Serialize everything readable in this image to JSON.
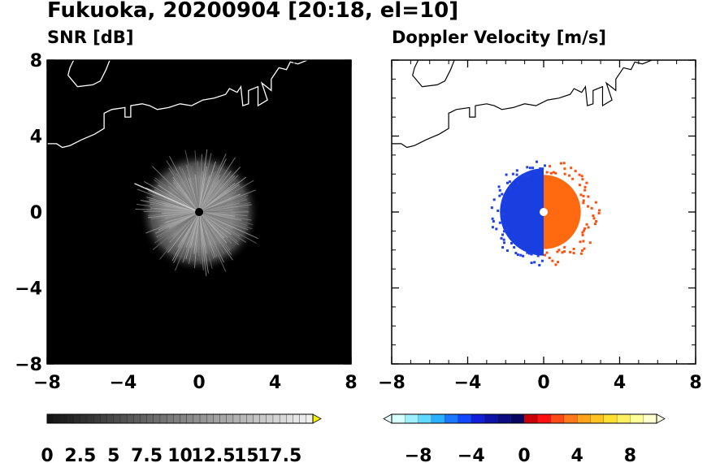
{
  "title": "Fukuoka, 20200904 [20:18, el=10]",
  "chart_data": [
    {
      "type": "heatmap",
      "title": "SNR [dB]",
      "xlim": [
        -8,
        8
      ],
      "ylim": [
        -8,
        8
      ],
      "xticks": [
        -8,
        -4,
        0,
        4,
        8
      ],
      "yticks": [
        -8,
        -4,
        0,
        4,
        8
      ],
      "x_tick_labels": [
        "−8",
        "−4",
        "0",
        "4",
        "8"
      ],
      "y_tick_labels": [
        "−8",
        "−4",
        "0",
        "4",
        "8"
      ],
      "background": "#000000",
      "echo": {
        "center": [
          0,
          0
        ],
        "radius": 3.2,
        "field_shade": "#8a8a8a"
      },
      "radar_marker": [
        0,
        0
      ],
      "colorbar": {
        "range": [
          0,
          20
        ],
        "labels": [
          "0",
          "2.5",
          "5",
          "7.5",
          "10",
          "12.5",
          "15",
          "17.5"
        ],
        "colors_from": "#000000",
        "colors_to": "#f0f0f0",
        "extend_color": "#f2f200"
      }
    },
    {
      "type": "heatmap",
      "title": "Doppler Velocity [m/s]",
      "xlim": [
        -8,
        8
      ],
      "ylim": [
        -8,
        8
      ],
      "xticks": [
        -8,
        -4,
        0,
        4,
        8
      ],
      "yticks": [
        -8,
        -4,
        0,
        4,
        8
      ],
      "x_tick_labels": [
        "−8",
        "−4",
        "0",
        "4",
        "8"
      ],
      "y_tick_labels": [
        "−8",
        "−4",
        "0",
        "4",
        "8"
      ],
      "background": "#ffffff",
      "echo": {
        "center": [
          0,
          0
        ],
        "radius": 2.3,
        "negative_color": "#1a3fe0",
        "positive_color": "#ff6a10"
      },
      "radar_marker": [
        0,
        0
      ],
      "colorbar": {
        "range": [
          -10,
          10
        ],
        "labels": [
          "−8",
          "−4",
          "0",
          "4",
          "8"
        ],
        "label_values": [
          -8,
          -4,
          0,
          4,
          8
        ],
        "neg_colors": [
          "#d8ffff",
          "#9ef0ff",
          "#60d8ff",
          "#2ab0ff",
          "#1a78ff",
          "#1246ff",
          "#1020d8",
          "#0c14a8",
          "#0a0c80",
          "#060660"
        ],
        "pos_colors": [
          "#c80008",
          "#ff1010",
          "#ff4a18",
          "#ff7a1a",
          "#ffa21c",
          "#ffc422",
          "#ffe030",
          "#fff060",
          "#ffff98",
          "#ffffd0"
        ]
      }
    }
  ]
}
